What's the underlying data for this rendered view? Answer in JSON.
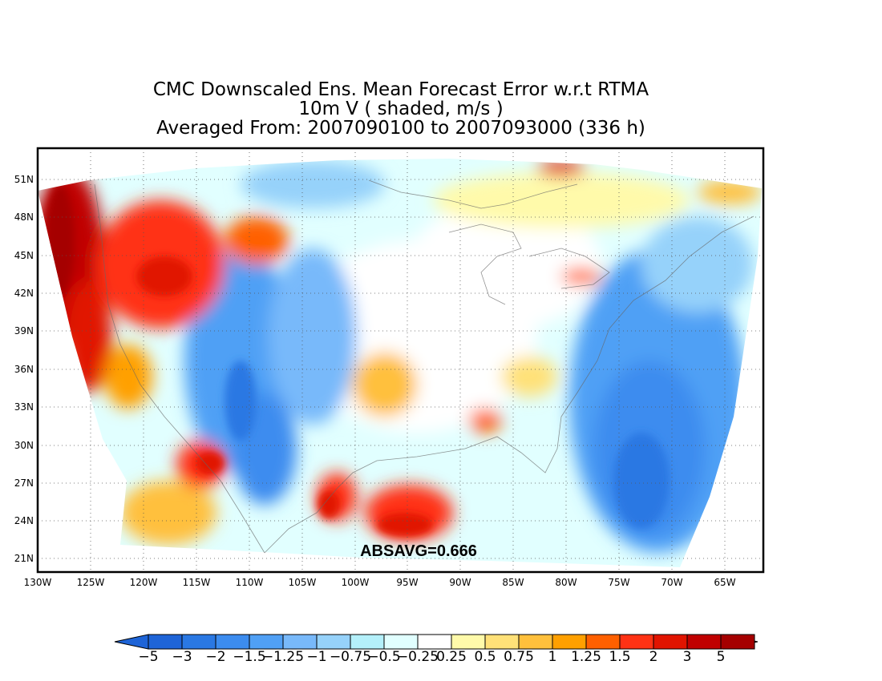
{
  "title": {
    "line1": "CMC Downscaled Ens. Mean Forecast Error w.r.t RTMA",
    "line2": "10m V ( shaded, m/s )",
    "line3": "Averaged From: 2007090100 to 2007093000 (336 h)"
  },
  "statistic": "ABSAVG=0.666",
  "map": {
    "lat_labels": [
      "51N",
      "48N",
      "45N",
      "42N",
      "39N",
      "36N",
      "33N",
      "30N",
      "27N",
      "24N",
      "21N"
    ],
    "lon_labels": [
      "130W",
      "125W",
      "120W",
      "115W",
      "110W",
      "105W",
      "100W",
      "95W",
      "90W",
      "85W",
      "80W",
      "75W",
      "70W",
      "65W"
    ],
    "grid": "dotted",
    "projection": "lambert conformal (CONUS domain)",
    "pattern": {
      "west_coast_offshore": "strong positive (red)",
      "pacific_northwest_interior": "positive (orange-red)",
      "rockies_and_great_basin": "negative (blue)",
      "central_plains": "mixed near zero, weak positive patches",
      "gulf_of_mexico_north": "positive (orange-red)",
      "atlantic_offshore": "negative (blue)",
      "baja_pacific_south": "positive (orange)"
    }
  },
  "colorbar": {
    "labels": [
      "−5",
      "−3",
      "−2",
      "−1.5",
      "−1.25",
      "−1",
      "−0.75",
      "−0.5",
      "−0.25",
      "0.25",
      "0.5",
      "0.75",
      "1",
      "1.25",
      "1.5",
      "2",
      "3",
      "5"
    ],
    "colors": [
      "#1e64d7",
      "#2a78e3",
      "#3c8cef",
      "#50a0f5",
      "#78b9fa",
      "#96d2fa",
      "#b4f0fa",
      "#e1ffff",
      "#ffffff",
      "#fffaaa",
      "#ffe178",
      "#ffc03c",
      "#ffa000",
      "#ff6000",
      "#ff3214",
      "#e11400",
      "#c00000",
      "#a50000"
    ],
    "end_left_color": "#1e64d7",
    "end_right_color": "#a50000"
  }
}
